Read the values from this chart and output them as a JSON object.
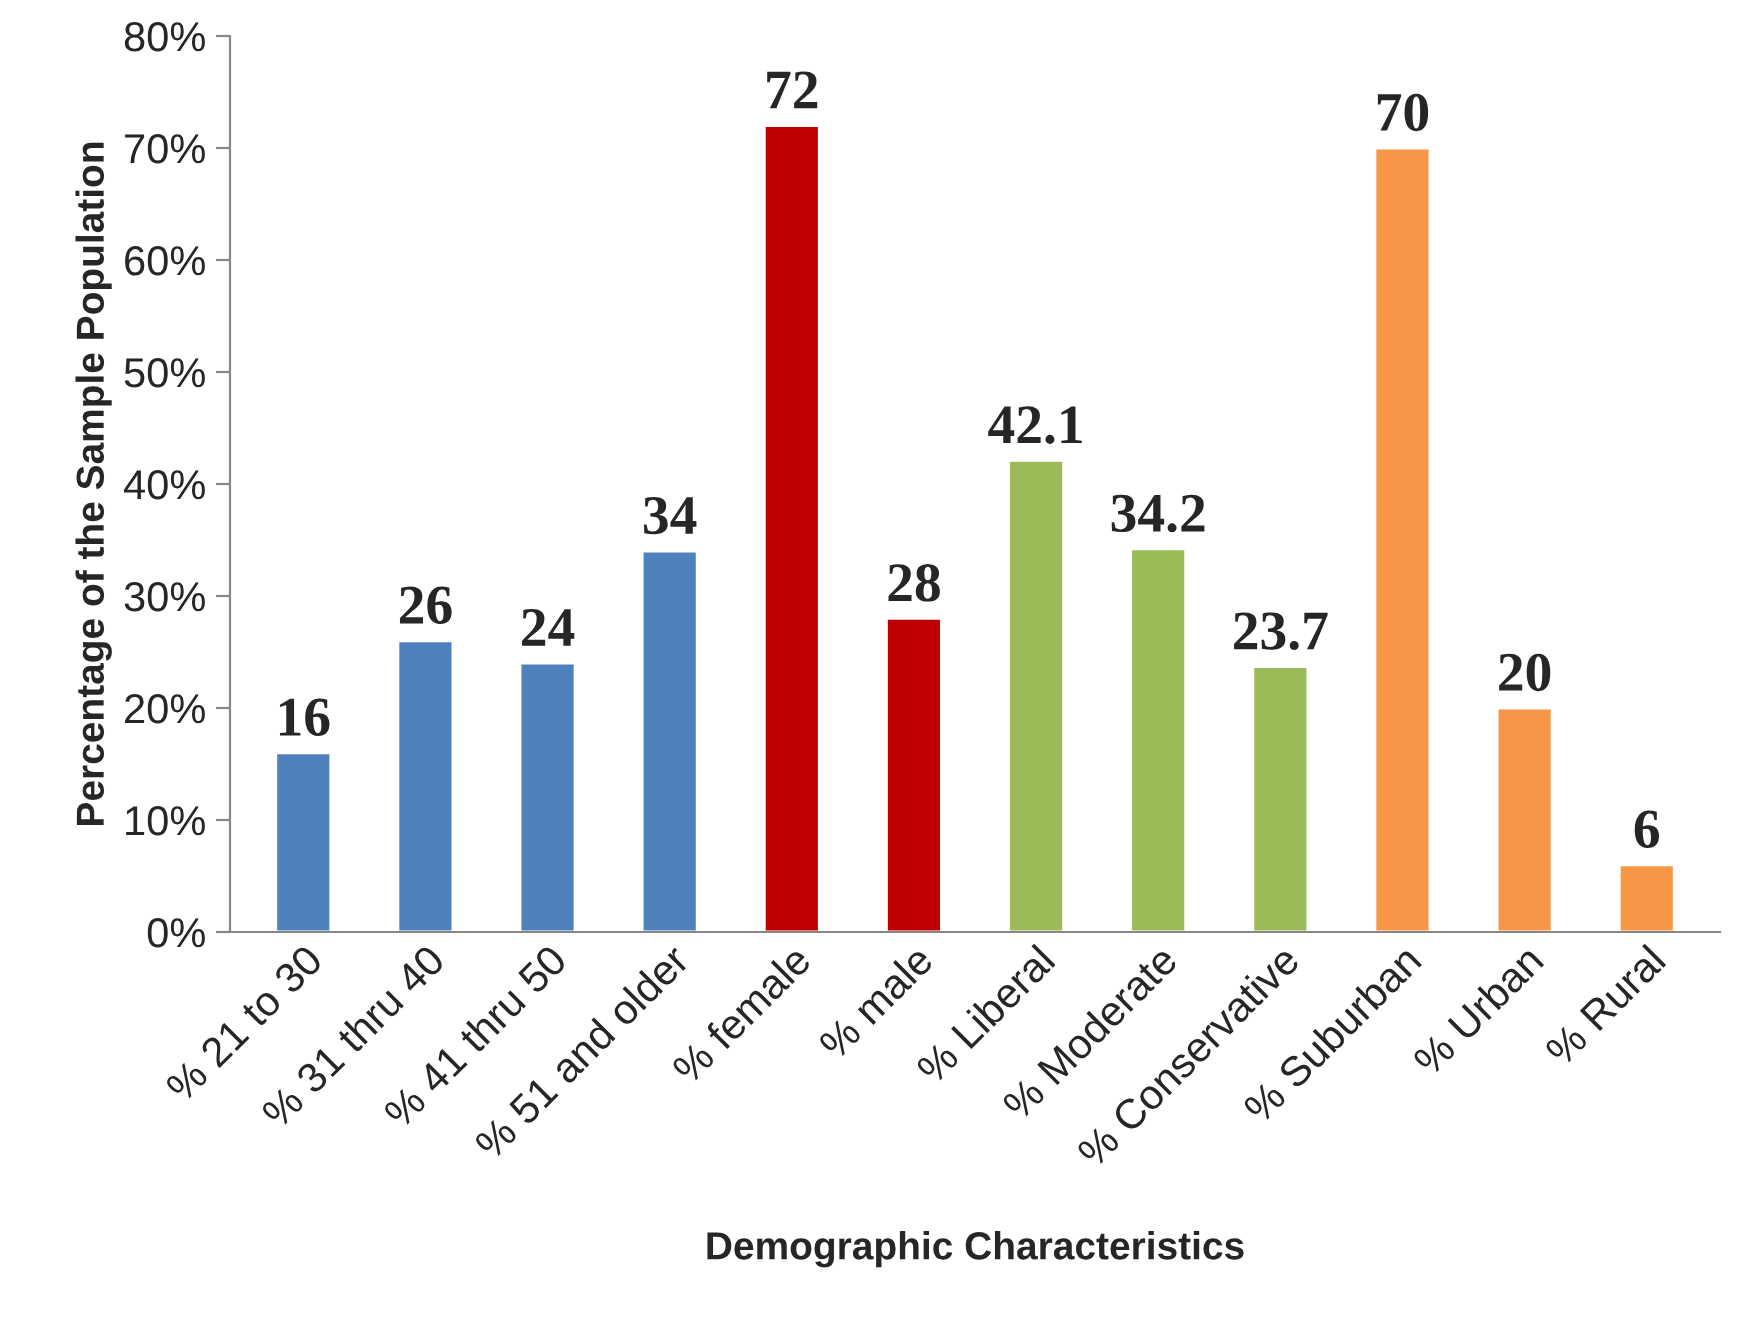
{
  "chart_data": {
    "type": "bar",
    "xlabel": "Demographic Characteristics",
    "ylabel": "Percentage of the Sample Population",
    "categories": [
      "% 21 to 30",
      "% 31 thru 40",
      "% 41 thru 50",
      "% 51 and older",
      "% female",
      "% male",
      "% Liberal",
      "% Moderate",
      "% Conservative",
      "% Suburban",
      "% Urban",
      "% Rural"
    ],
    "values": [
      16,
      26,
      24,
      34,
      72,
      28,
      42.1,
      34.2,
      23.7,
      70,
      20,
      6
    ],
    "colors": [
      "#4f81bd",
      "#4f81bd",
      "#4f81bd",
      "#4f81bd",
      "#c00000",
      "#c00000",
      "#9bbb59",
      "#9bbb59",
      "#9bbb59",
      "#f79646",
      "#f79646",
      "#f79646"
    ],
    "ylim": [
      0,
      80
    ],
    "yticks": [
      {
        "value": 0,
        "label": "0%"
      },
      {
        "value": 10,
        "label": "10%"
      },
      {
        "value": 20,
        "label": "20%"
      },
      {
        "value": 30,
        "label": "30%"
      },
      {
        "value": 40,
        "label": "40%"
      },
      {
        "value": 50,
        "label": "50%"
      },
      {
        "value": 60,
        "label": "60%"
      },
      {
        "value": 70,
        "label": "70%"
      },
      {
        "value": 80,
        "label": "80%"
      }
    ],
    "data_labels": true
  }
}
